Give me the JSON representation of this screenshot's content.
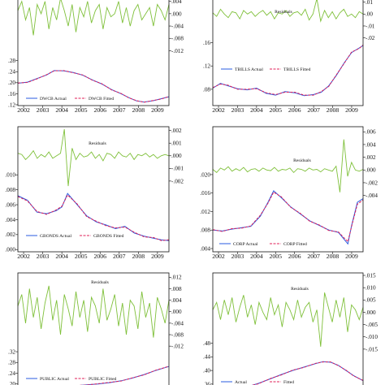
{
  "colors": {
    "residual": "#7fc03a",
    "actual": "#2a5be0",
    "fitted": "#e0205a",
    "frame": "#111111",
    "background": "#ffffff"
  },
  "chart_data": [
    {
      "type": "line",
      "panel": "top-left",
      "x_ticks": [
        "2002",
        "2003",
        "2004",
        "2005",
        "2006",
        "2007",
        "2008",
        "2009"
      ],
      "xlim": [
        2001.7,
        2009.6
      ],
      "right_axis_ticks": [
        ".004",
        ".000",
        "-.004",
        "-.008",
        "-.012"
      ],
      "right_ylim": [
        -0.014,
        0.0055
      ],
      "left_axis_ticks": [
        ".28",
        ".24",
        ".20",
        ".16",
        ".12"
      ],
      "left_ylim": [
        0.117,
        0.335
      ],
      "residual_label": "",
      "series": [
        {
          "name": "DWCB Actual",
          "role": "actual",
          "x": [
            2001.7,
            2002.2,
            2002.7,
            2003.2,
            2003.6,
            2004.1,
            2004.6,
            2005.1,
            2005.6,
            2006.1,
            2006.6,
            2007.1,
            2007.5,
            2007.9,
            2008.3,
            2008.8,
            2009.2,
            2009.6
          ],
          "values": [
            0.198,
            0.202,
            0.215,
            0.228,
            0.244,
            0.243,
            0.237,
            0.227,
            0.21,
            0.195,
            0.175,
            0.16,
            0.146,
            0.134,
            0.13,
            0.135,
            0.142,
            0.149
          ]
        },
        {
          "name": "DWCB Fitted",
          "role": "fitted",
          "x": [
            2001.7,
            2002.2,
            2002.7,
            2003.2,
            2003.6,
            2004.1,
            2004.6,
            2005.1,
            2005.6,
            2006.1,
            2006.6,
            2007.1,
            2007.5,
            2007.9,
            2008.3,
            2008.8,
            2009.2,
            2009.6
          ],
          "values": [
            0.199,
            0.201,
            0.214,
            0.229,
            0.243,
            0.244,
            0.236,
            0.228,
            0.209,
            0.196,
            0.174,
            0.161,
            0.145,
            0.135,
            0.129,
            0.136,
            0.141,
            0.15
          ]
        },
        {
          "name": "",
          "role": "residual",
          "values": [
            0.001,
            0.004,
            -0.002,
            0.002,
            -0.007,
            0.003,
            0.0,
            0.004,
            -0.005,
            0.002,
            -0.002,
            0.005,
            0.001,
            -0.004,
            0.003,
            -0.006,
            0.002,
            -0.001,
            0.004,
            -0.003,
            0.001,
            0.003,
            -0.005,
            0.002,
            -0.001,
            0.0,
            0.004,
            -0.003,
            0.002,
            -0.004,
            0.001,
            0.003,
            -0.002,
            0.0,
            0.002,
            -0.004,
            0.003,
            0.001,
            -0.002,
            0.003
          ]
        }
      ]
    },
    {
      "type": "line",
      "panel": "top-right",
      "x_ticks": [
        "2002",
        "2003",
        "2004",
        "2005",
        "2006",
        "2007",
        "2008",
        "2009"
      ],
      "xlim": [
        2001.7,
        2009.6
      ],
      "right_axis_ticks": [
        ".01",
        ".00",
        "-.01",
        "-.02"
      ],
      "right_ylim": [
        -0.025,
        0.0145
      ],
      "left_axis_ticks": [
        ".16",
        ".12",
        ".08",
        ".04"
      ],
      "left_ylim": [
        0.052,
        0.183
      ],
      "residual_label": "Residuals",
      "series": [
        {
          "name": "TBILLS Actual",
          "role": "actual",
          "x": [
            2001.7,
            2002.1,
            2002.5,
            2003.0,
            2003.5,
            2004.0,
            2004.5,
            2005.0,
            2005.5,
            2006.0,
            2006.5,
            2007.0,
            2007.4,
            2007.8,
            2008.2,
            2008.6,
            2009.0,
            2009.4,
            2009.6
          ],
          "values": [
            0.082,
            0.09,
            0.086,
            0.081,
            0.079,
            0.082,
            0.073,
            0.07,
            0.076,
            0.074,
            0.069,
            0.071,
            0.075,
            0.086,
            0.104,
            0.125,
            0.143,
            0.151,
            0.155
          ]
        },
        {
          "name": "TBILLS Fitted",
          "role": "fitted",
          "x": [
            2001.7,
            2002.1,
            2002.5,
            2003.0,
            2003.5,
            2004.0,
            2004.5,
            2005.0,
            2005.5,
            2006.0,
            2006.5,
            2007.0,
            2007.4,
            2007.8,
            2008.2,
            2008.6,
            2009.0,
            2009.4,
            2009.6
          ],
          "values": [
            0.083,
            0.089,
            0.087,
            0.08,
            0.08,
            0.081,
            0.074,
            0.071,
            0.075,
            0.075,
            0.07,
            0.07,
            0.076,
            0.085,
            0.105,
            0.124,
            0.144,
            0.15,
            0.156
          ]
        },
        {
          "name": "Residuals",
          "role": "residual",
          "values": [
            0.001,
            -0.002,
            0.004,
            0.0,
            -0.003,
            0.002,
            0.001,
            -0.004,
            0.003,
            0.0,
            0.002,
            -0.002,
            0.001,
            0.003,
            -0.001,
            0.002,
            -0.004,
            0.001,
            0.0,
            0.003,
            -0.002,
            0.001,
            0.002,
            -0.001,
            0.004,
            -0.005,
            0.0,
            0.013,
            -0.006,
            0.003,
            -0.003,
            0.002,
            -0.004,
            0.001,
            0.004,
            -0.002,
            0.0,
            -0.003,
            0.002,
            0.0
          ]
        }
      ]
    },
    {
      "type": "line",
      "panel": "middle-left",
      "x_ticks": [
        "2002",
        "2003",
        "2004",
        "2005",
        "2006",
        "2007",
        "2008",
        "2009"
      ],
      "xlim": [
        2001.7,
        2009.6
      ],
      "right_axis_ticks": [
        ".002",
        ".001",
        ".000",
        "-.001",
        "-.002"
      ],
      "right_ylim": [
        -0.0031,
        0.0023
      ],
      "left_axis_ticks": [
        ".010",
        ".008",
        ".006",
        ".004",
        ".002",
        ".000"
      ],
      "left_ylim": [
        -0.0003,
        0.0122
      ],
      "residual_label": "Residuals",
      "series": [
        {
          "name": "GBONDS Actual",
          "role": "actual",
          "x": [
            2001.7,
            2002.2,
            2002.7,
            2003.2,
            2003.7,
            2004.0,
            2004.3,
            2004.8,
            2005.3,
            2005.8,
            2006.3,
            2006.8,
            2007.3,
            2007.8,
            2008.3,
            2008.8,
            2009.2,
            2009.6
          ],
          "values": [
            0.0072,
            0.0066,
            0.005,
            0.0048,
            0.0052,
            0.0057,
            0.0075,
            0.006,
            0.0045,
            0.0037,
            0.0033,
            0.0028,
            0.0031,
            0.0022,
            0.0018,
            0.0015,
            0.0013,
            0.0012
          ]
        },
        {
          "name": "GBONDS Fitted",
          "role": "fitted",
          "x": [
            2001.7,
            2002.2,
            2002.7,
            2003.2,
            2003.7,
            2004.0,
            2004.3,
            2004.8,
            2005.3,
            2005.8,
            2006.3,
            2006.8,
            2007.3,
            2007.8,
            2008.3,
            2008.8,
            2009.2,
            2009.6
          ],
          "values": [
            0.0071,
            0.0065,
            0.0051,
            0.0047,
            0.0053,
            0.0058,
            0.0073,
            0.0061,
            0.0044,
            0.0038,
            0.0032,
            0.0029,
            0.003,
            0.0023,
            0.0017,
            0.0016,
            0.0012,
            0.0013
          ]
        },
        {
          "name": "Residuals",
          "role": "residual",
          "values": [
            0.0002,
            0.0001,
            -0.0003,
            0.0,
            0.0004,
            -0.0002,
            0.0001,
            -0.0001,
            0.0003,
            -0.0002,
            0.0,
            0.0002,
            0.0021,
            -0.0024,
            0.0006,
            -0.0003,
            0.0002,
            -0.0001,
            0.0,
            0.0003,
            -0.0002,
            0.0001,
            -0.0004,
            0.0002,
            0.0001,
            -0.0002,
            0.0003,
            0.0,
            -0.0001,
            0.0002,
            -0.0003,
            0.0001,
            0.0,
            0.0002,
            -0.0001,
            0.0001,
            -0.0002,
            0.0,
            0.0001,
            0.0
          ]
        }
      ]
    },
    {
      "type": "line",
      "panel": "middle-right",
      "x_ticks": [
        "2002",
        "2003",
        "2004",
        "2005",
        "2006",
        "2007",
        "2008",
        "2009"
      ],
      "xlim": [
        2001.7,
        2009.6
      ],
      "right_axis_ticks": [
        ".006",
        ".004",
        ".002",
        ".000",
        "-.002",
        "-.004"
      ],
      "right_ylim": [
        -0.0052,
        0.0068
      ],
      "left_axis_ticks": [
        ".020",
        ".016",
        ".012",
        ".008",
        ".004"
      ],
      "left_ylim": [
        0.0033,
        0.0235
      ],
      "residual_label": "Residuals",
      "series": [
        {
          "name": "CORP Actual",
          "role": "actual",
          "x": [
            2001.7,
            2002.2,
            2002.7,
            2003.2,
            2003.7,
            2004.2,
            2004.6,
            2004.9,
            2005.3,
            2005.8,
            2006.3,
            2006.8,
            2007.3,
            2007.8,
            2008.3,
            2008.6,
            2008.8,
            2009.0,
            2009.3,
            2009.6
          ],
          "values": [
            0.008,
            0.0078,
            0.0082,
            0.0085,
            0.0088,
            0.011,
            0.014,
            0.0165,
            0.015,
            0.013,
            0.0115,
            0.01,
            0.009,
            0.008,
            0.0075,
            0.006,
            0.005,
            0.009,
            0.014,
            0.0148
          ]
        },
        {
          "name": "CORP Fitted",
          "role": "fitted",
          "x": [
            2001.7,
            2002.2,
            2002.7,
            2003.2,
            2003.7,
            2004.2,
            2004.6,
            2004.9,
            2005.3,
            2005.8,
            2006.3,
            2006.8,
            2007.3,
            2007.8,
            2008.3,
            2008.6,
            2008.8,
            2009.0,
            2009.3,
            2009.6
          ],
          "values": [
            0.0081,
            0.0077,
            0.0083,
            0.0084,
            0.0089,
            0.0112,
            0.0138,
            0.0162,
            0.0152,
            0.0129,
            0.0116,
            0.0099,
            0.0091,
            0.0079,
            0.0076,
            0.0063,
            0.0055,
            0.0088,
            0.0136,
            0.0145
          ]
        },
        {
          "name": "Residuals",
          "role": "residual",
          "values": [
            0.0001,
            -0.0004,
            0.0003,
            0.0,
            0.0005,
            -0.0002,
            0.0002,
            -0.0001,
            0.0004,
            -0.0003,
            0.0001,
            0.0002,
            -0.0002,
            0.0003,
            0.0,
            -0.0001,
            0.0004,
            -0.0002,
            0.0001,
            0.0,
            0.0003,
            -0.0004,
            0.0002,
            0.0001,
            -0.0002,
            0.0003,
            0.0,
            0.0001,
            -0.0003,
            0.0002,
            0.0,
            -0.0002,
            0.0006,
            -0.0035,
            0.0048,
            -0.001,
            0.0012,
            0.0,
            -0.0002,
            0.0001
          ]
        }
      ]
    },
    {
      "type": "line",
      "panel": "bottom-left",
      "x_ticks": [],
      "xlim": [
        2001.7,
        2009.6
      ],
      "right_axis_ticks": [
        ".012",
        ".008",
        ".004",
        ".000",
        "-.004",
        "-.008",
        "-.012"
      ],
      "right_ylim": [
        -0.0145,
        0.0135
      ],
      "left_axis_ticks": [
        ".32",
        ".28",
        ".24",
        ".20"
      ],
      "left_ylim": [
        0.178,
        0.435
      ],
      "residual_label": "Residuals",
      "series": [
        {
          "name": "PUBLIC Actual",
          "role": "actual",
          "x": [
            2001.7,
            2002.3,
            2002.9,
            2003.5,
            2004.1,
            2004.7,
            2005.3,
            2005.9,
            2006.5,
            2007.1,
            2007.7,
            2008.3,
            2008.9,
            2009.6
          ],
          "values": [
            0.18,
            0.182,
            0.185,
            0.188,
            0.19,
            0.193,
            0.197,
            0.2,
            0.205,
            0.212,
            0.222,
            0.235,
            0.25,
            0.265
          ]
        },
        {
          "name": "PUBLIC Fitted",
          "role": "fitted",
          "x": [
            2001.7,
            2002.3,
            2002.9,
            2003.5,
            2004.1,
            2004.7,
            2005.3,
            2005.9,
            2006.5,
            2007.1,
            2007.7,
            2008.3,
            2008.9,
            2009.6
          ],
          "values": [
            0.181,
            0.183,
            0.184,
            0.189,
            0.191,
            0.194,
            0.196,
            0.201,
            0.206,
            0.211,
            0.223,
            0.234,
            0.251,
            0.266
          ]
        },
        {
          "name": "Residuals",
          "role": "residual",
          "values": [
            0.002,
            0.006,
            -0.004,
            0.008,
            -0.002,
            0.005,
            -0.006,
            0.003,
            0.009,
            -0.003,
            0.004,
            -0.008,
            0.006,
            0.001,
            -0.005,
            0.007,
            -0.002,
            0.004,
            -0.007,
            0.005,
            0.002,
            -0.004,
            0.008,
            -0.003,
            0.001,
            0.006,
            -0.005,
            0.003,
            -0.008,
            0.004,
            0.002,
            -0.006,
            0.007,
            -0.002,
            0.003,
            -0.009,
            0.005,
            0.001,
            -0.004,
            0.004
          ]
        }
      ]
    },
    {
      "type": "line",
      "panel": "bottom-right",
      "x_ticks": [],
      "xlim": [
        2001.7,
        2009.6
      ],
      "right_axis_ticks": [
        ".015",
        ".010",
        ".005",
        ".000",
        "-.005",
        "-.010",
        "-.015"
      ],
      "right_ylim": [
        -0.02,
        0.016
      ],
      "left_axis_ticks": [
        ".48",
        ".44",
        ".40",
        ".36"
      ],
      "left_ylim": [
        0.343,
        0.51
      ],
      "residual_label": "Residuals",
      "series": [
        {
          "name": "Actual",
          "role": "actual",
          "x": [
            2001.7,
            2002.3,
            2002.9,
            2003.5,
            2004.1,
            2004.7,
            2005.3,
            2005.9,
            2006.5,
            2007.1,
            2007.5,
            2007.9,
            2008.3,
            2008.7,
            2009.1,
            2009.6
          ],
          "values": [
            0.352,
            0.35,
            0.349,
            0.352,
            0.362,
            0.375,
            0.388,
            0.4,
            0.41,
            0.42,
            0.426,
            0.424,
            0.415,
            0.4,
            0.385,
            0.37
          ]
        },
        {
          "name": "Fitted",
          "role": "fitted",
          "x": [
            2001.7,
            2002.3,
            2002.9,
            2003.5,
            2004.1,
            2004.7,
            2005.3,
            2005.9,
            2006.5,
            2007.1,
            2007.5,
            2007.9,
            2008.3,
            2008.7,
            2009.1,
            2009.6
          ],
          "values": [
            0.353,
            0.351,
            0.348,
            0.353,
            0.361,
            0.376,
            0.387,
            0.401,
            0.409,
            0.421,
            0.425,
            0.425,
            0.414,
            0.401,
            0.384,
            0.371
          ]
        },
        {
          "name": "Residuals",
          "role": "residual",
          "values": [
            0.001,
            0.004,
            -0.003,
            0.005,
            -0.001,
            0.006,
            -0.004,
            0.002,
            0.007,
            -0.002,
            0.003,
            -0.005,
            0.004,
            0.0,
            -0.003,
            0.006,
            -0.001,
            0.003,
            -0.006,
            0.004,
            0.001,
            -0.003,
            0.005,
            -0.002,
            0.002,
            0.004,
            -0.004,
            0.001,
            -0.014,
            0.008,
            0.002,
            -0.004,
            0.005,
            -0.002,
            0.006,
            -0.008,
            0.003,
            0.001,
            -0.003,
            0.002
          ]
        }
      ]
    }
  ]
}
